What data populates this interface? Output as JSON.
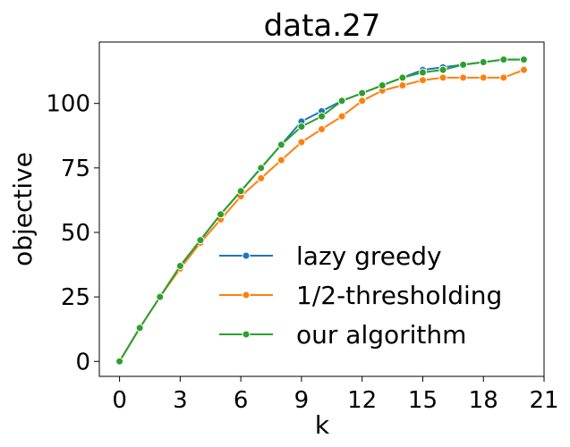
{
  "chart_data": {
    "type": "line",
    "title": "data.27",
    "xlabel": "k",
    "ylabel": "objective",
    "xlim": [
      -1,
      21
    ],
    "ylim": [
      -5.8,
      123.8
    ],
    "xticks": [
      0,
      3,
      6,
      9,
      12,
      15,
      18,
      21
    ],
    "yticks": [
      0,
      25,
      50,
      75,
      100
    ],
    "grid": false,
    "legend_position": "lower-right",
    "x": [
      0,
      1,
      2,
      3,
      4,
      5,
      6,
      7,
      8,
      9,
      10,
      11,
      12,
      13,
      14,
      15,
      16,
      17,
      18,
      19,
      20
    ],
    "series": [
      {
        "name": "lazy greedy",
        "color": "#1f77b4",
        "values": [
          0,
          13,
          25,
          37,
          47,
          57,
          66,
          75,
          84,
          93,
          97,
          101,
          104,
          107,
          110,
          113,
          114,
          115,
          116,
          117,
          117
        ]
      },
      {
        "name": "1/2-thresholding",
        "color": "#ff7f0e",
        "values": [
          0,
          13,
          25,
          36,
          46,
          55,
          64,
          71,
          78,
          85,
          90,
          95,
          101,
          105,
          107,
          109,
          110,
          110,
          110,
          110,
          113
        ]
      },
      {
        "name": "our algorithm",
        "color": "#2ca02c",
        "values": [
          0,
          13,
          25,
          37,
          47,
          57,
          66,
          75,
          84,
          91,
          95,
          101,
          104,
          107,
          110,
          112,
          113,
          115,
          116,
          117,
          117
        ]
      }
    ]
  }
}
